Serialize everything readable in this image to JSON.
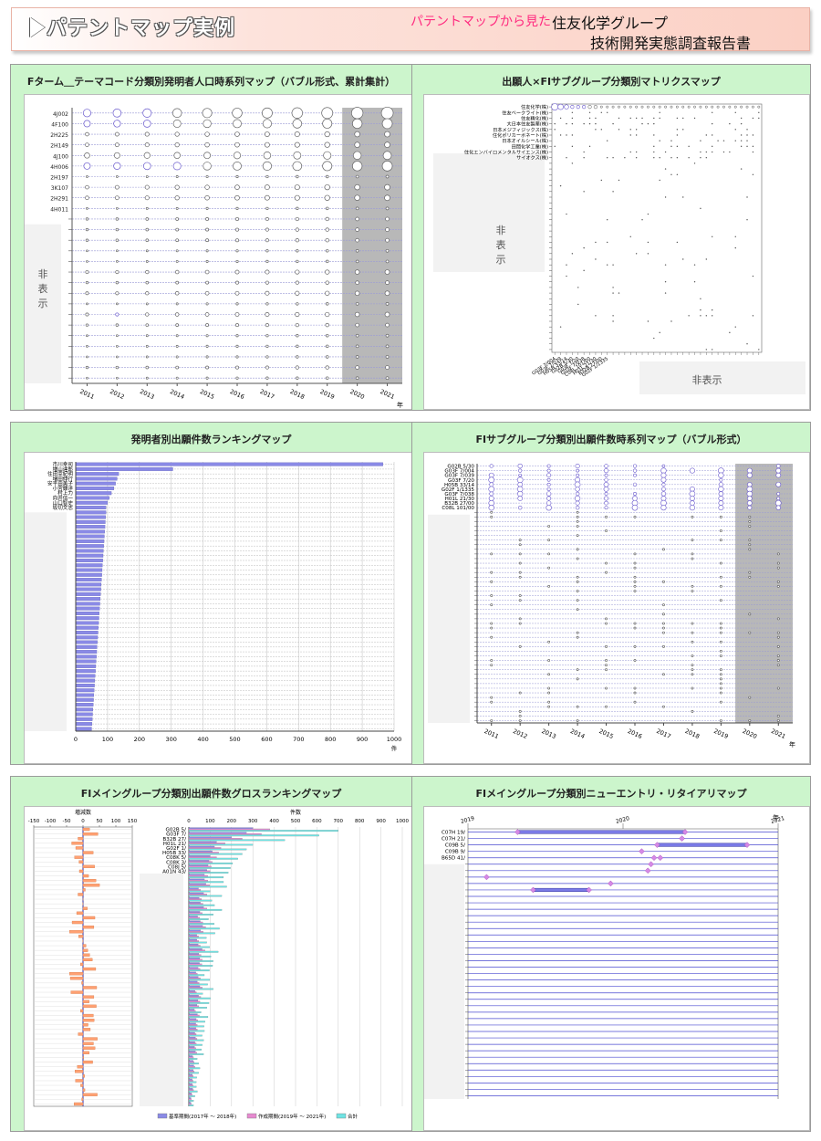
{
  "header": {
    "title": "パテントマップ実例",
    "subtitle_accent": "パテントマップから見た",
    "company": "住友化学グループ",
    "report": "技術開発実態調査報告書"
  },
  "colors": {
    "panel_bg": "#ccf5cc",
    "bubble": "#6a5acd",
    "bar_base": "#8a8ae6",
    "bar_new": "#e68ad0",
    "bar_total": "#6fe3e3",
    "delta": "#ffa072"
  },
  "hidden_label": "非表示",
  "panels": {
    "p1": {
      "title": "Fターム＿テーマコード分類別発明者人口時系列マップ（バブル形式、累計集計）"
    },
    "p2": {
      "title": "出願人×FIサブグループ分類別マトリクスマップ"
    },
    "p3": {
      "title": "発明者別出願件数ランキングマップ"
    },
    "p4": {
      "title": "FIサブグループ分類別出願件数時系列マップ（バブル形式）"
    },
    "p5": {
      "title": "FIメイングループ分類別出願件数グロスランキングマップ"
    },
    "p6": {
      "title": "FIメイングループ分類別ニューエントリ・リタイアリマップ"
    }
  },
  "chart_data": [
    {
      "id": "fterm_bubble",
      "type": "scatter",
      "x": [
        "2011",
        "2012",
        "2013",
        "2014",
        "2015",
        "2016",
        "2017",
        "2018",
        "2019",
        "2020",
        "2021"
      ],
      "x_unit": "年",
      "categories": [
        "4J002",
        "4F100",
        "2H225",
        "2H149",
        "4J100",
        "4H006",
        "2H197",
        "3K107",
        "2H291",
        "4H011"
      ],
      "shaded_x": [
        "2020",
        "2021"
      ]
    },
    {
      "id": "applicant_matrix",
      "type": "scatter",
      "rows": [
        "住友化学(株)",
        "住友ベークライト(株)",
        "住友精化(株)",
        "大日本住友製薬(株)",
        "日本メジフィジックス(株)",
        "住化ポリカーボネート(株)",
        "日本オイルシール(株)",
        "田岡化学工業(株)",
        "住化エンバイロメンタルサイエンス(株)",
        "サイオクス(株)"
      ],
      "cols": [
        "G03F 7/004",
        "G03F 7/039",
        "H05B 33/14",
        "G02B 5/30",
        "G03F 7/20",
        "G03F 7/038",
        "C08L 101/00",
        "H01L 21/30",
        "B32B 27/00",
        "G02F 1/1335"
      ]
    },
    {
      "id": "inventor_ranking",
      "type": "bar",
      "categories": [
        "市川幸司",
        "増山達郎",
        "住田幸紀明",
        "増田伸行",
        "安平由美子",
        "小宮輝洋",
        "村上力",
        "向井信一",
        "山口智史",
        "坂切文志"
      ],
      "values": [
        965,
        305,
        135,
        130,
        125,
        120,
        112,
        105,
        100,
        95
      ],
      "xlim": [
        0,
        1000
      ],
      "xticks": [
        0,
        100,
        200,
        300,
        400,
        500,
        600,
        700,
        800,
        900,
        1000
      ],
      "x_unit": "件"
    },
    {
      "id": "fi_subgroup_bubble",
      "type": "scatter",
      "x": [
        "2011",
        "2012",
        "2013",
        "2014",
        "2015",
        "2016",
        "2017",
        "2018",
        "2019",
        "2020",
        "2021"
      ],
      "x_unit": "年",
      "categories": [
        "G02B 5/30",
        "G03F 7/004",
        "G03F 7/039",
        "G03F 7/20",
        "H05B 33/14",
        "G02F 1/1335",
        "G03F 7/038",
        "H01L 21/30",
        "B32B 27/00",
        "C08L 101/00"
      ],
      "shaded_x": [
        "2020",
        "2021"
      ]
    },
    {
      "id": "fi_main_gross",
      "type": "bar",
      "categories": [
        "G02B 5/",
        "G03F 7/",
        "B32B 27/",
        "H01L 21/",
        "G02F 1/",
        "H05B 33/",
        "C08K 5/",
        "C08K 3/",
        "C08J 5/",
        "A01N 43/"
      ],
      "series": [
        {
          "name": "基準期間(2017年 ～ 2018年)",
          "values": [
            300,
            270,
            200,
            130,
            120,
            110,
            100,
            95,
            90,
            85
          ]
        },
        {
          "name": "作成期間(2019年 ～ 2021年)",
          "values": [
            380,
            340,
            250,
            170,
            150,
            140,
            130,
            110,
            105,
            100
          ]
        },
        {
          "name": "合計",
          "values": [
            700,
            610,
            450,
            300,
            270,
            250,
            230,
            205,
            195,
            185
          ]
        }
      ],
      "xlabel": "件数",
      "xlim": [
        0,
        1000
      ],
      "xticks": [
        0,
        100,
        200,
        300,
        400,
        500,
        600,
        700,
        800,
        900,
        1000
      ],
      "delta_label": "増減数",
      "delta_xlim": [
        -150,
        150
      ],
      "delta_ticks": [
        -150,
        -100,
        -50,
        0,
        50,
        100,
        150
      ]
    },
    {
      "id": "new_entry_retire",
      "type": "line",
      "categories": [
        "C07H 19/",
        "C07H 21/",
        "C09B 5/",
        "C09B 9/",
        "B65D 41/"
      ],
      "x_ticks": [
        "2019",
        "2020",
        "2021"
      ],
      "x_unit": "年"
    }
  ]
}
